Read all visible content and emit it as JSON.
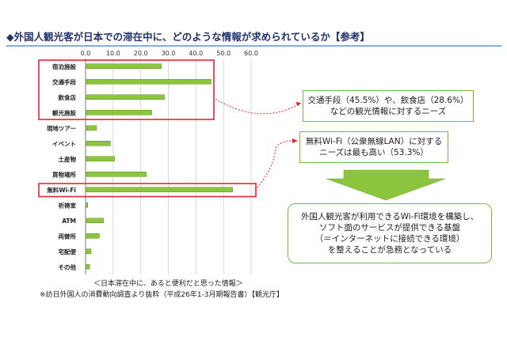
{
  "page": {
    "title": "◆外国人観光客が日本での滞在中に、どのような情報が求められているか【参考】"
  },
  "chart_data": {
    "type": "bar",
    "orientation": "horizontal",
    "categories": [
      "宿泊施設",
      "交通手段",
      "飲食店",
      "観光施設",
      "現地ツアー",
      "イベント",
      "土産物",
      "買物場所",
      "無料Wi-Fi",
      "祈祷室",
      "ATM",
      "両替所",
      "宅配便",
      "その他"
    ],
    "values": [
      27.5,
      45.5,
      28.6,
      24.0,
      4.0,
      9.0,
      10.5,
      22.0,
      53.3,
      0.8,
      6.5,
      5.0,
      2.0,
      1.5
    ],
    "xlim": [
      0,
      60
    ],
    "xticks": [
      "0.0",
      "10.0",
      "20.0",
      "30.0",
      "40.0",
      "50.0",
      "60.0"
    ],
    "grid": true,
    "bar_color": "#8cc63f",
    "highlight_color": "#e3262f",
    "highlight_groups": [
      [
        "宿泊施設",
        "交通手段",
        "飲食店",
        "観光施設"
      ],
      [
        "無料Wi-Fi"
      ]
    ]
  },
  "callouts": {
    "transport": [
      "交通手段（45.5%）や、飲食店（28.6%）",
      "などの観光情報に対するニーズ"
    ],
    "wifi": [
      "無料Wi-Fi（公衆無線LAN）に対する",
      "ニーズは最も高い（53.3%）"
    ],
    "summary": [
      "外国人観光客が利用できるWi-Fi環境を構築し、",
      "ソフト面のサービスが提供できる基盤",
      "（＝インターネットに接続できる環境）",
      "を整えることが急務となっている"
    ]
  },
  "colors": {
    "callout_border": "#7ab848",
    "arrow": "#8cc63f",
    "leader": "#e3262f"
  },
  "footnotes": {
    "caption": "＜日本滞在中に、あると便利だと思った情報＞",
    "source": "※訪日外国人の消費動向調査より抜粋（平成26年1-3月期報告書）【観光庁】"
  }
}
